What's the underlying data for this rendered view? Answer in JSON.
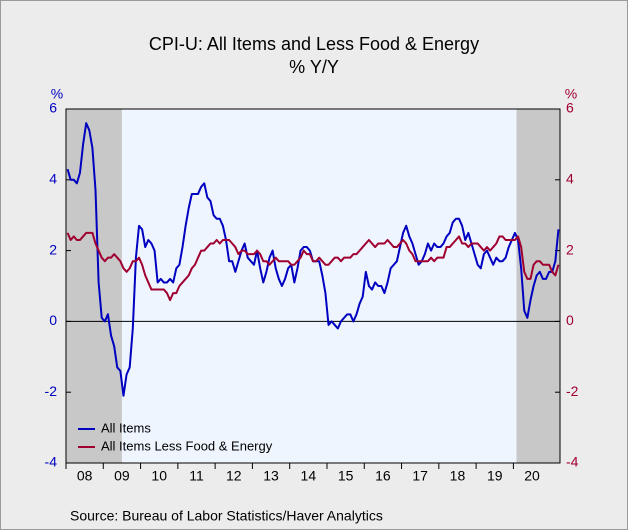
{
  "chart_data": {
    "type": "line",
    "title": "CPI-U: All Items and Less Food & Energy",
    "subtitle": "% Y/Y",
    "ylabel": "%",
    "y2label": "%",
    "source": "Source:  Bureau of Labor Statistics/Haver Analytics",
    "xlim": [
      "2008-01",
      "2021-04"
    ],
    "xticks": [
      {
        "value": "2008-01",
        "label": "08"
      },
      {
        "value": "2009-01",
        "label": "09"
      },
      {
        "value": "2010-01",
        "label": "10"
      },
      {
        "value": "2011-01",
        "label": "11"
      },
      {
        "value": "2012-01",
        "label": "12"
      },
      {
        "value": "2013-01",
        "label": "13"
      },
      {
        "value": "2014-01",
        "label": "14"
      },
      {
        "value": "2015-01",
        "label": "15"
      },
      {
        "value": "2016-01",
        "label": "16"
      },
      {
        "value": "2017-01",
        "label": "17"
      },
      {
        "value": "2018-01",
        "label": "18"
      },
      {
        "value": "2019-01",
        "label": "19"
      },
      {
        "value": "2020-01",
        "label": "20"
      }
    ],
    "ylim": [
      -4,
      6
    ],
    "yticks": [
      -4,
      -2,
      0,
      2,
      4,
      6
    ],
    "y2lim": [
      -4,
      6
    ],
    "y2ticks": [
      -4,
      -2,
      0,
      2,
      4,
      6
    ],
    "shaded_periods": [
      [
        "2008-01",
        "2009-07"
      ],
      [
        "2020-02",
        "2021-04"
      ]
    ],
    "legend": "lower-left",
    "x": [
      "2008-01",
      "2008-02",
      "2008-03",
      "2008-04",
      "2008-05",
      "2008-06",
      "2008-07",
      "2008-08",
      "2008-09",
      "2008-10",
      "2008-11",
      "2008-12",
      "2009-01",
      "2009-02",
      "2009-03",
      "2009-04",
      "2009-05",
      "2009-06",
      "2009-07",
      "2009-08",
      "2009-09",
      "2009-10",
      "2009-11",
      "2009-12",
      "2010-01",
      "2010-02",
      "2010-03",
      "2010-04",
      "2010-05",
      "2010-06",
      "2010-07",
      "2010-08",
      "2010-09",
      "2010-10",
      "2010-11",
      "2010-12",
      "2011-01",
      "2011-02",
      "2011-03",
      "2011-04",
      "2011-05",
      "2011-06",
      "2011-07",
      "2011-08",
      "2011-09",
      "2011-10",
      "2011-11",
      "2011-12",
      "2012-01",
      "2012-02",
      "2012-03",
      "2012-04",
      "2012-05",
      "2012-06",
      "2012-07",
      "2012-08",
      "2012-09",
      "2012-10",
      "2012-11",
      "2012-12",
      "2013-01",
      "2013-02",
      "2013-03",
      "2013-04",
      "2013-05",
      "2013-06",
      "2013-07",
      "2013-08",
      "2013-09",
      "2013-10",
      "2013-11",
      "2013-12",
      "2014-01",
      "2014-02",
      "2014-03",
      "2014-04",
      "2014-05",
      "2014-06",
      "2014-07",
      "2014-08",
      "2014-09",
      "2014-10",
      "2014-11",
      "2014-12",
      "2015-01",
      "2015-02",
      "2015-03",
      "2015-04",
      "2015-05",
      "2015-06",
      "2015-07",
      "2015-08",
      "2015-09",
      "2015-10",
      "2015-11",
      "2015-12",
      "2016-01",
      "2016-02",
      "2016-03",
      "2016-04",
      "2016-05",
      "2016-06",
      "2016-07",
      "2016-08",
      "2016-09",
      "2016-10",
      "2016-11",
      "2016-12",
      "2017-01",
      "2017-02",
      "2017-03",
      "2017-04",
      "2017-05",
      "2017-06",
      "2017-07",
      "2017-08",
      "2017-09",
      "2017-10",
      "2017-11",
      "2017-12",
      "2018-01",
      "2018-02",
      "2018-03",
      "2018-04",
      "2018-05",
      "2018-06",
      "2018-07",
      "2018-08",
      "2018-09",
      "2018-10",
      "2018-11",
      "2018-12",
      "2019-01",
      "2019-02",
      "2019-03",
      "2019-04",
      "2019-05",
      "2019-06",
      "2019-07",
      "2019-08",
      "2019-09",
      "2019-10",
      "2019-11",
      "2019-12",
      "2020-01",
      "2020-02",
      "2020-03",
      "2020-04",
      "2020-05",
      "2020-06",
      "2020-07",
      "2020-08",
      "2020-09",
      "2020-10",
      "2020-11",
      "2020-12",
      "2021-01",
      "2021-02",
      "2021-03"
    ],
    "series": [
      {
        "name": "All Items",
        "color": "#0000c0",
        "axis": "y",
        "values": [
          4.3,
          4.0,
          4.0,
          3.9,
          4.2,
          5.0,
          5.6,
          5.4,
          4.9,
          3.7,
          1.1,
          0.1,
          0.0,
          0.2,
          -0.4,
          -0.7,
          -1.3,
          -1.4,
          -2.1,
          -1.5,
          -1.3,
          -0.2,
          1.8,
          2.7,
          2.6,
          2.1,
          2.3,
          2.2,
          2.0,
          1.1,
          1.2,
          1.1,
          1.1,
          1.2,
          1.1,
          1.5,
          1.6,
          2.1,
          2.7,
          3.2,
          3.6,
          3.6,
          3.6,
          3.8,
          3.9,
          3.5,
          3.4,
          3.0,
          2.9,
          2.9,
          2.7,
          2.3,
          1.7,
          1.7,
          1.4,
          1.7,
          2.0,
          2.2,
          1.8,
          1.7,
          1.6,
          2.0,
          1.5,
          1.1,
          1.4,
          1.8,
          2.0,
          1.5,
          1.2,
          1.0,
          1.2,
          1.5,
          1.6,
          1.1,
          1.5,
          2.0,
          2.1,
          2.1,
          2.0,
          1.7,
          1.7,
          1.7,
          1.3,
          0.8,
          -0.1,
          0.0,
          -0.1,
          -0.2,
          0.0,
          0.1,
          0.2,
          0.2,
          0.0,
          0.2,
          0.5,
          0.7,
          1.4,
          1.0,
          0.9,
          1.1,
          1.0,
          1.0,
          0.8,
          1.1,
          1.5,
          1.6,
          1.7,
          2.1,
          2.5,
          2.7,
          2.4,
          2.2,
          1.9,
          1.6,
          1.7,
          1.9,
          2.2,
          2.0,
          2.2,
          2.1,
          2.1,
          2.2,
          2.4,
          2.5,
          2.8,
          2.9,
          2.9,
          2.7,
          2.3,
          2.5,
          2.2,
          1.9,
          1.6,
          1.5,
          1.9,
          2.0,
          1.8,
          1.6,
          1.8,
          1.7,
          1.7,
          1.8,
          2.1,
          2.3,
          2.5,
          2.3,
          1.5,
          0.3,
          0.1,
          0.6,
          1.0,
          1.3,
          1.4,
          1.2,
          1.2,
          1.4,
          1.4,
          1.7,
          2.6
        ]
      },
      {
        "name": "All Items Less Food & Energy",
        "color": "#a00030",
        "axis": "y2",
        "values": [
          2.5,
          2.3,
          2.4,
          2.3,
          2.3,
          2.4,
          2.5,
          2.5,
          2.5,
          2.2,
          2.0,
          1.8,
          1.7,
          1.8,
          1.8,
          1.9,
          1.8,
          1.7,
          1.5,
          1.4,
          1.5,
          1.7,
          1.7,
          1.8,
          1.6,
          1.3,
          1.1,
          0.9,
          0.9,
          0.9,
          0.9,
          0.9,
          0.8,
          0.6,
          0.8,
          0.8,
          1.0,
          1.1,
          1.2,
          1.3,
          1.5,
          1.6,
          1.8,
          2.0,
          2.0,
          2.1,
          2.2,
          2.2,
          2.3,
          2.2,
          2.3,
          2.3,
          2.3,
          2.2,
          2.1,
          1.9,
          2.0,
          2.0,
          1.9,
          1.9,
          1.9,
          2.0,
          1.9,
          1.7,
          1.7,
          1.6,
          1.7,
          1.8,
          1.7,
          1.7,
          1.7,
          1.7,
          1.6,
          1.6,
          1.7,
          1.8,
          2.0,
          1.9,
          1.9,
          1.7,
          1.7,
          1.8,
          1.7,
          1.6,
          1.6,
          1.7,
          1.8,
          1.8,
          1.7,
          1.8,
          1.8,
          1.8,
          1.9,
          1.9,
          2.0,
          2.1,
          2.2,
          2.3,
          2.2,
          2.1,
          2.2,
          2.2,
          2.2,
          2.3,
          2.2,
          2.1,
          2.1,
          2.2,
          2.3,
          2.2,
          2.0,
          1.9,
          1.7,
          1.7,
          1.7,
          1.7,
          1.7,
          1.8,
          1.7,
          1.8,
          1.8,
          1.8,
          2.1,
          2.1,
          2.2,
          2.3,
          2.4,
          2.2,
          2.2,
          2.1,
          2.2,
          2.2,
          2.2,
          2.1,
          2.0,
          2.1,
          2.0,
          2.1,
          2.2,
          2.4,
          2.4,
          2.3,
          2.3,
          2.3,
          2.3,
          2.4,
          2.1,
          1.4,
          1.2,
          1.2,
          1.6,
          1.7,
          1.7,
          1.6,
          1.6,
          1.6,
          1.4,
          1.3,
          1.6
        ]
      }
    ]
  }
}
